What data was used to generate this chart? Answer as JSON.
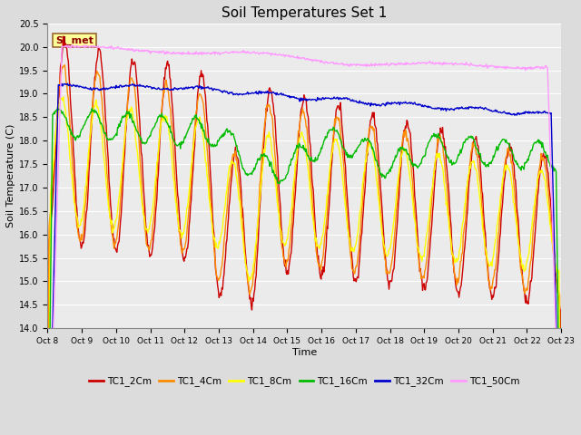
{
  "title": "Soil Temperatures Set 1",
  "xlabel": "Time",
  "ylabel": "Soil Temperature (C)",
  "ylim": [
    14.0,
    20.5
  ],
  "yticks": [
    14.0,
    14.5,
    15.0,
    15.5,
    16.0,
    16.5,
    17.0,
    17.5,
    18.0,
    18.5,
    19.0,
    19.5,
    20.0,
    20.5
  ],
  "xtick_labels": [
    "Oct 8",
    "Oct 9",
    "Oct 10",
    "Oct 11",
    "Oct 12",
    "Oct 13",
    "Oct 14",
    "Oct 15",
    "Oct 16",
    "Oct 17",
    "Oct 18",
    "Oct 19",
    "Oct 20",
    "Oct 21",
    "Oct 22",
    "Oct 23"
  ],
  "annotation_text": "SI_met",
  "annotation_bg": "#FFFF99",
  "annotation_border": "#996633",
  "bg_color": "#DCDCDC",
  "plot_bg": "#EBEBEB",
  "grid_color": "#FFFFFF",
  "colors": {
    "TC1_2Cm": "#CC0000",
    "TC1_4Cm": "#FF8C00",
    "TC1_8Cm": "#FFFF00",
    "TC1_16Cm": "#00BB00",
    "TC1_32Cm": "#0000CC",
    "TC1_50Cm": "#FF99FF"
  }
}
